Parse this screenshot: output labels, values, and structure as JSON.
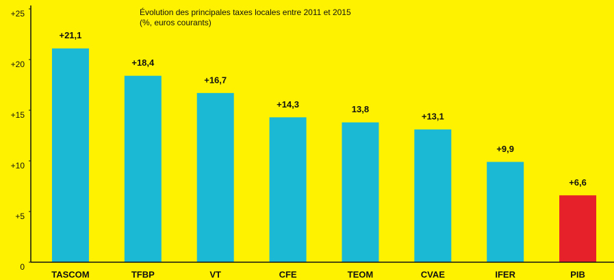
{
  "chart_data": {
    "type": "bar",
    "title": "Évolution des principales taxes locales entre 2011 et 2015",
    "subtitle": "(%, euros courants)",
    "categories": [
      "TASCOM",
      "TFBP",
      "VT",
      "CFE",
      "TEOM",
      "CVAE",
      "IFER",
      "PIB"
    ],
    "values": [
      21.1,
      18.4,
      16.7,
      14.3,
      13.8,
      13.1,
      9.9,
      6.6
    ],
    "value_labels": [
      "+21,1",
      "+18,4",
      "+16,7",
      "+14,3",
      "13,8",
      "+13,1",
      "+9,9",
      "+6,6"
    ],
    "colors": [
      "#1cb9d5",
      "#1cb9d5",
      "#1cb9d5",
      "#1cb9d5",
      "#1cb9d5",
      "#1cb9d5",
      "#1cb9d5",
      "#e62129"
    ],
    "ylim": [
      0,
      25
    ],
    "yticks": [
      0,
      {
        "value": 5,
        "label": "+5"
      },
      {
        "value": 10,
        "label": "+10"
      },
      {
        "value": 15,
        "label": "+15"
      },
      {
        "value": 20,
        "label": "+20"
      },
      {
        "value": 25,
        "label": "+25"
      }
    ],
    "grid": false
  }
}
